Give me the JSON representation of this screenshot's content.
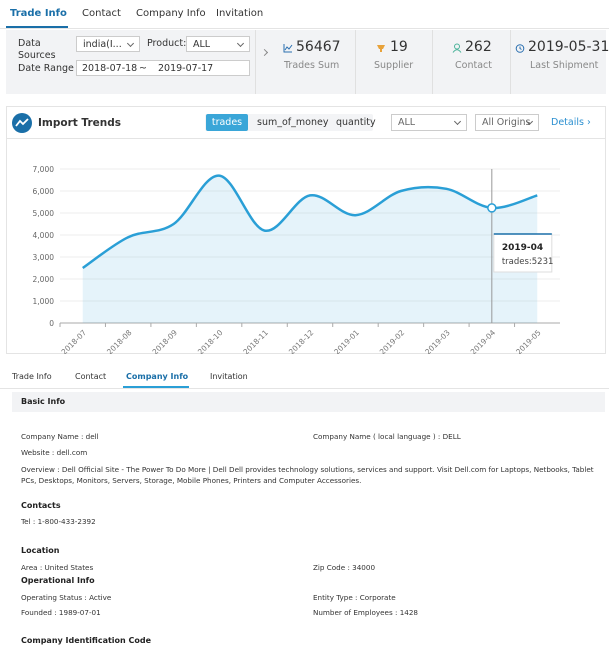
{
  "top_tabs": [
    "Trade Info",
    "Contact",
    "Company Info",
    "Invitation"
  ],
  "filters": {
    "data_sources_label": "Data Sources :",
    "data_sources_value": "india(I...",
    "product_label": "Product:",
    "product_value": "ALL",
    "date_range_label": "Date Range :",
    "date_from": "2018-07-18",
    "separator": "~",
    "date_to": "2019-07-17"
  },
  "stats": [
    {
      "value": 56467,
      "label": "Trades Sum"
    },
    {
      "value": 19,
      "label": "Supplier"
    },
    {
      "value": 262,
      "label": "Contact"
    },
    {
      "value": "2019-05-31",
      "label": "Last Shipment"
    }
  ],
  "trends": {
    "title": "Import Trends",
    "metric_buttons": [
      "trades",
      "sum_of_money",
      "quantity"
    ],
    "filter_value": "ALL",
    "origin_value": "All Origins",
    "details_link": "Details"
  },
  "chart_data": {
    "type": "line",
    "categories": [
      "2018-07",
      "2018-08",
      "2018-09",
      "2018-10",
      "2018-11",
      "2018-12",
      "2019-01",
      "2019-02",
      "2019-03",
      "2019-04",
      "2019-05"
    ],
    "series": [
      {
        "name": "trades",
        "color": "#2a9fd6",
        "values": [
          2500,
          3900,
          4500,
          6700,
          4200,
          5800,
          4900,
          6000,
          6100,
          5231,
          5800
        ]
      }
    ],
    "ylim": [
      0,
      7000
    ],
    "yticks": [
      0,
      {
        "value": 1000,
        "label": "1,000"
      },
      {
        "value": 2000,
        "label": "2,000"
      },
      {
        "value": 3000,
        "label": "3,000"
      },
      {
        "value": 4000,
        "label": "4,000"
      },
      {
        "value": 5000,
        "label": "5,000"
      },
      {
        "value": 6000,
        "label": "6,000"
      },
      {
        "value": 7000,
        "label": "7,000"
      }
    ],
    "grid": true,
    "area": true,
    "tooltip": {
      "title": "2019-04",
      "text": "trades:5231"
    }
  },
  "bottom_tabs": [
    "Trade Info",
    "Contact",
    "Company Info",
    "Invitation"
  ],
  "company": {
    "basic_info": {
      "title": "Basic Info",
      "company_name": "Company Name : dell",
      "local_name": "Company Name ( local language ) : DELL",
      "website": "Website : dell.com",
      "overview": "Overview : Dell Official Site - The Power To Do More | Dell Dell provides technology solutions, services and support. Visit Dell.com for Laptops, Netbooks, Tablet PCs, Desktops, Monitors, Servers, Storage, Mobile Phones, Printers and Computer Accessories."
    },
    "contacts": {
      "title": "Contacts",
      "tel": "Tel : 1-800-433-2392"
    },
    "location": {
      "title": "Location",
      "area": "Area : United States",
      "zip": "Zip Code : 34000"
    },
    "operational": {
      "title": "Operational Info",
      "status": "Operating Status : Active",
      "entity": "Entity Type : Corporate",
      "founded": "Founded : 1989-07-01",
      "employees": "Number of Employees : 1428"
    },
    "identification": {
      "title": "Company Identification Code"
    }
  }
}
